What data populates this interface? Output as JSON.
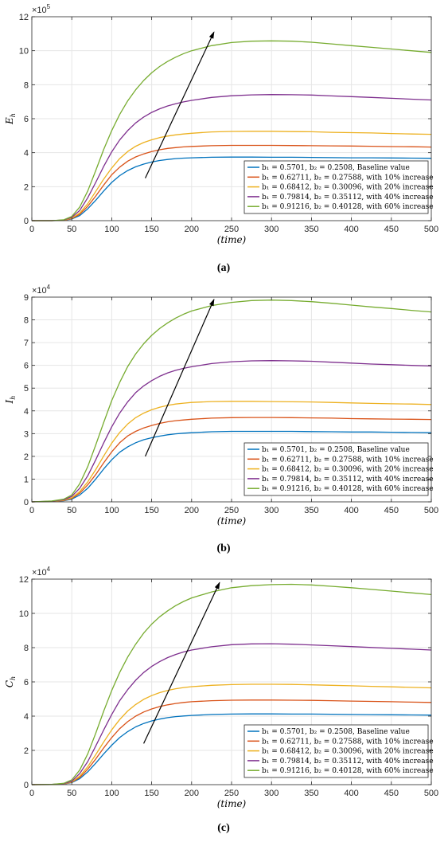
{
  "series_style": {
    "colors": [
      "#0072BD",
      "#D95319",
      "#EDB120",
      "#7E2F8E",
      "#77AC30"
    ]
  },
  "legend_entries": [
    "b₁ = 0.5701,  b₂ = 0.2508, Baseline value",
    "b₁ = 0.62711,  b₂ = 0.27588, with 10% increase",
    "b₁ = 0.68412,  b₂ = 0.30096, with 20% increase",
    "b₁ = 0.79814,  b₂ = 0.35112, with 40% increase",
    "b₁ = 0.91216,  b₂ = 0.40128, with 60% increase"
  ],
  "chart_data": [
    {
      "type": "line",
      "caption": "(a)",
      "ylabel": "E_h",
      "xlabel": "(time)",
      "multiplier": "×10^5",
      "xlim": [
        0,
        500
      ],
      "ylim": [
        0,
        12
      ],
      "xticks": [
        0,
        50,
        100,
        150,
        200,
        250,
        300,
        350,
        400,
        450,
        500
      ],
      "yticks": [
        0,
        2,
        4,
        6,
        8,
        10,
        12
      ],
      "grid": true,
      "legend_location": "lower-right",
      "arrow": {
        "from": [
          142,
          2.5
        ],
        "to": [
          228,
          11.1
        ]
      },
      "x": [
        0,
        25,
        40,
        50,
        60,
        70,
        80,
        90,
        100,
        110,
        120,
        130,
        140,
        150,
        160,
        170,
        180,
        190,
        200,
        225,
        250,
        275,
        300,
        325,
        350,
        375,
        400,
        425,
        450,
        475,
        500
      ],
      "series": [
        {
          "values": [
            0,
            0,
            0.02,
            0.1,
            0.3,
            0.7,
            1.2,
            1.75,
            2.25,
            2.65,
            2.95,
            3.17,
            3.33,
            3.45,
            3.54,
            3.6,
            3.65,
            3.68,
            3.7,
            3.73,
            3.74,
            3.74,
            3.73,
            3.73,
            3.72,
            3.71,
            3.7,
            3.7,
            3.69,
            3.68,
            3.67
          ]
        },
        {
          "values": [
            0,
            0,
            0.02,
            0.12,
            0.38,
            0.85,
            1.45,
            2.1,
            2.7,
            3.15,
            3.5,
            3.75,
            3.93,
            4.07,
            4.17,
            4.25,
            4.3,
            4.34,
            4.37,
            4.41,
            4.43,
            4.43,
            4.43,
            4.42,
            4.41,
            4.4,
            4.39,
            4.38,
            4.36,
            4.35,
            4.33
          ]
        },
        {
          "values": [
            0,
            0,
            0.03,
            0.15,
            0.45,
            1.0,
            1.72,
            2.45,
            3.1,
            3.65,
            4.07,
            4.38,
            4.6,
            4.76,
            4.89,
            4.98,
            5.05,
            5.1,
            5.14,
            5.22,
            5.25,
            5.26,
            5.26,
            5.24,
            5.23,
            5.2,
            5.18,
            5.16,
            5.13,
            5.1,
            5.08
          ]
        },
        {
          "values": [
            0,
            0,
            0.04,
            0.2,
            0.6,
            1.35,
            2.25,
            3.2,
            4.05,
            4.75,
            5.3,
            5.75,
            6.1,
            6.37,
            6.58,
            6.75,
            6.88,
            6.99,
            7.08,
            7.25,
            7.35,
            7.4,
            7.42,
            7.41,
            7.39,
            7.34,
            7.3,
            7.25,
            7.2,
            7.15,
            7.1
          ]
        },
        {
          "values": [
            0,
            0,
            0.05,
            0.25,
            0.8,
            1.75,
            2.95,
            4.2,
            5.3,
            6.25,
            7.05,
            7.7,
            8.25,
            8.7,
            9.07,
            9.37,
            9.62,
            9.83,
            10.0,
            10.3,
            10.48,
            10.56,
            10.58,
            10.56,
            10.5,
            10.4,
            10.3,
            10.2,
            10.1,
            10.0,
            9.9
          ]
        }
      ]
    },
    {
      "type": "line",
      "caption": "(b)",
      "ylabel": "I_h",
      "xlabel": "(time)",
      "multiplier": "×10^4",
      "xlim": [
        0,
        500
      ],
      "ylim": [
        0,
        9
      ],
      "xticks": [
        0,
        50,
        100,
        150,
        200,
        250,
        300,
        350,
        400,
        450,
        500
      ],
      "yticks": [
        0,
        1,
        2,
        3,
        4,
        5,
        6,
        7,
        8,
        9
      ],
      "grid": true,
      "legend_location": "lower-right",
      "arrow": {
        "from": [
          142,
          2.0
        ],
        "to": [
          228,
          8.9
        ]
      },
      "x": [
        0,
        25,
        40,
        50,
        60,
        70,
        80,
        90,
        100,
        110,
        120,
        130,
        140,
        150,
        160,
        170,
        180,
        190,
        200,
        225,
        250,
        275,
        300,
        325,
        350,
        375,
        400,
        425,
        450,
        475,
        500
      ],
      "series": [
        {
          "values": [
            0,
            0.02,
            0.05,
            0.12,
            0.3,
            0.6,
            1.0,
            1.45,
            1.85,
            2.18,
            2.42,
            2.6,
            2.73,
            2.82,
            2.89,
            2.95,
            2.99,
            3.02,
            3.04,
            3.08,
            3.1,
            3.1,
            3.1,
            3.1,
            3.09,
            3.08,
            3.07,
            3.07,
            3.06,
            3.05,
            3.04
          ]
        },
        {
          "values": [
            0,
            0.02,
            0.06,
            0.15,
            0.38,
            0.75,
            1.2,
            1.72,
            2.2,
            2.6,
            2.9,
            3.1,
            3.25,
            3.36,
            3.45,
            3.52,
            3.57,
            3.6,
            3.63,
            3.68,
            3.7,
            3.71,
            3.71,
            3.7,
            3.69,
            3.68,
            3.66,
            3.65,
            3.64,
            3.63,
            3.62
          ]
        },
        {
          "values": [
            0,
            0.02,
            0.07,
            0.18,
            0.45,
            0.88,
            1.42,
            2.02,
            2.58,
            3.05,
            3.42,
            3.7,
            3.9,
            4.05,
            4.16,
            4.24,
            4.3,
            4.34,
            4.37,
            4.41,
            4.42,
            4.42,
            4.41,
            4.4,
            4.39,
            4.37,
            4.35,
            4.33,
            4.31,
            4.3,
            4.28
          ]
        },
        {
          "values": [
            0,
            0.03,
            0.09,
            0.24,
            0.6,
            1.15,
            1.85,
            2.6,
            3.3,
            3.9,
            4.4,
            4.8,
            5.1,
            5.33,
            5.52,
            5.67,
            5.78,
            5.87,
            5.94,
            6.08,
            6.16,
            6.2,
            6.21,
            6.2,
            6.18,
            6.14,
            6.1,
            6.06,
            6.03,
            6.0,
            5.97
          ]
        },
        {
          "values": [
            0,
            0.04,
            0.12,
            0.3,
            0.8,
            1.55,
            2.5,
            3.5,
            4.45,
            5.25,
            5.95,
            6.5,
            6.95,
            7.32,
            7.62,
            7.87,
            8.08,
            8.25,
            8.39,
            8.63,
            8.77,
            8.85,
            8.87,
            8.85,
            8.8,
            8.73,
            8.65,
            8.57,
            8.5,
            8.42,
            8.35
          ]
        }
      ]
    },
    {
      "type": "line",
      "caption": "(c)",
      "ylabel": "C_h",
      "xlabel": "(time)",
      "multiplier": "×10^4",
      "xlim": [
        0,
        500
      ],
      "ylim": [
        0,
        12
      ],
      "xticks": [
        0,
        50,
        100,
        150,
        200,
        250,
        300,
        350,
        400,
        450,
        500
      ],
      "yticks": [
        0,
        2,
        4,
        6,
        8,
        10,
        12
      ],
      "grid": true,
      "legend_location": "lower-right",
      "arrow": {
        "from": [
          140,
          2.4
        ],
        "to": [
          235,
          11.8
        ]
      },
      "x": [
        0,
        25,
        40,
        50,
        60,
        70,
        80,
        90,
        100,
        110,
        120,
        130,
        140,
        150,
        160,
        170,
        180,
        190,
        200,
        225,
        250,
        275,
        300,
        325,
        350,
        375,
        400,
        425,
        450,
        475,
        500
      ],
      "series": [
        {
          "values": [
            0,
            0.01,
            0.03,
            0.12,
            0.35,
            0.75,
            1.25,
            1.8,
            2.3,
            2.75,
            3.1,
            3.37,
            3.57,
            3.72,
            3.83,
            3.91,
            3.97,
            4.01,
            4.04,
            4.1,
            4.12,
            4.13,
            4.13,
            4.12,
            4.12,
            4.11,
            4.1,
            4.09,
            4.08,
            4.07,
            4.06
          ]
        },
        {
          "values": [
            0,
            0.01,
            0.04,
            0.14,
            0.42,
            0.9,
            1.5,
            2.15,
            2.75,
            3.27,
            3.68,
            4.0,
            4.24,
            4.42,
            4.56,
            4.66,
            4.74,
            4.8,
            4.84,
            4.9,
            4.93,
            4.94,
            4.94,
            4.93,
            4.92,
            4.9,
            4.88,
            4.86,
            4.84,
            4.82,
            4.8
          ]
        },
        {
          "values": [
            0,
            0.01,
            0.04,
            0.16,
            0.5,
            1.05,
            1.75,
            2.5,
            3.2,
            3.8,
            4.3,
            4.68,
            4.98,
            5.2,
            5.37,
            5.5,
            5.6,
            5.67,
            5.72,
            5.8,
            5.84,
            5.86,
            5.86,
            5.85,
            5.83,
            5.8,
            5.77,
            5.74,
            5.71,
            5.68,
            5.65
          ]
        },
        {
          "values": [
            0,
            0.02,
            0.06,
            0.2,
            0.65,
            1.35,
            2.25,
            3.2,
            4.1,
            4.9,
            5.55,
            6.1,
            6.55,
            6.9,
            7.18,
            7.42,
            7.6,
            7.75,
            7.86,
            8.05,
            8.17,
            8.22,
            8.23,
            8.2,
            8.16,
            8.11,
            8.06,
            8.01,
            7.96,
            7.91,
            7.86
          ]
        },
        {
          "values": [
            0,
            0.02,
            0.08,
            0.28,
            0.85,
            1.8,
            3.0,
            4.3,
            5.5,
            6.55,
            7.45,
            8.2,
            8.85,
            9.37,
            9.8,
            10.15,
            10.45,
            10.7,
            10.9,
            11.25,
            11.5,
            11.62,
            11.68,
            11.7,
            11.66,
            11.58,
            11.5,
            11.4,
            11.3,
            11.2,
            11.1
          ]
        }
      ]
    }
  ]
}
